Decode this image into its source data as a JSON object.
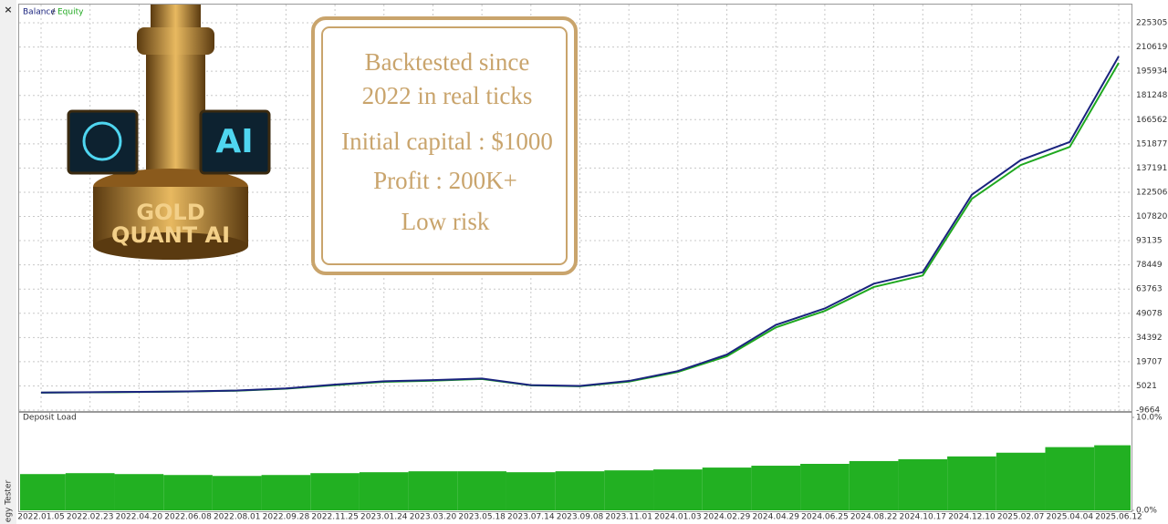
{
  "chart_data": [
    {
      "type": "line",
      "legend_separator": "/",
      "categories": [
        "2022.01.05",
        "2022.02.23",
        "2022.04.20",
        "2022.06.08",
        "2022.08.01",
        "2022.09.28",
        "2022.11.25",
        "2023.01.24",
        "2023.03.20",
        "2023.05.18",
        "2023.07.14",
        "2023.09.08",
        "2023.11.01",
        "2024.01.03",
        "2024.02.29",
        "2024.04.29",
        "2024.06.25",
        "2024.08.22",
        "2024.10.17",
        "2024.12.10",
        "2025.02.07",
        "2025.04.04",
        "2025.06.12"
      ],
      "series": [
        {
          "name": "Balance",
          "color": "#1a237e",
          "values": [
            1000,
            1200,
            1400,
            1700,
            2200,
            3500,
            5800,
            7800,
            8500,
            9500,
            5500,
            5000,
            8000,
            14000,
            24000,
            42000,
            52000,
            67000,
            74000,
            121000,
            142000,
            153000,
            205000
          ]
        },
        {
          "name": "Equity",
          "color": "#1fa81f",
          "values": [
            900,
            1100,
            1300,
            1600,
            2100,
            3300,
            5500,
            7500,
            8200,
            9200,
            5300,
            4800,
            7600,
            13500,
            23000,
            40500,
            50500,
            65000,
            72000,
            118500,
            139000,
            150000,
            201000
          ]
        }
      ],
      "ylim": [
        -9664,
        225305
      ],
      "yticks": [
        -9664,
        5021,
        19707,
        34392,
        49078,
        63763,
        78449,
        93135,
        107820,
        122506,
        137191,
        151877,
        166562,
        181248,
        195934,
        210619,
        225305
      ],
      "grid": true
    },
    {
      "type": "bar",
      "title": "Deposit Load",
      "color": "#22b022",
      "values": [
        3.9,
        4.0,
        3.9,
        3.8,
        3.7,
        3.8,
        4.0,
        4.1,
        4.2,
        4.2,
        4.1,
        4.2,
        4.3,
        4.4,
        4.6,
        4.8,
        5.0,
        5.3,
        5.5,
        5.8,
        6.2,
        6.8,
        7.0
      ],
      "ylim": [
        0,
        10
      ],
      "yticks": [
        {
          "value": 0,
          "label": "0.0%"
        },
        {
          "value": 10,
          "label": "10.0%"
        }
      ]
    }
  ],
  "window": {
    "close": "×",
    "side_label": "egy Tester"
  },
  "overlay": {
    "logo_screen": "AI",
    "logo_line1": "GOLD",
    "logo_line2": "QUANT AI",
    "box_lines": [
      "Backtested since",
      "2022 in real ticks",
      "Initial capital : $1000",
      "Profit : 200K+",
      "Low risk"
    ]
  }
}
